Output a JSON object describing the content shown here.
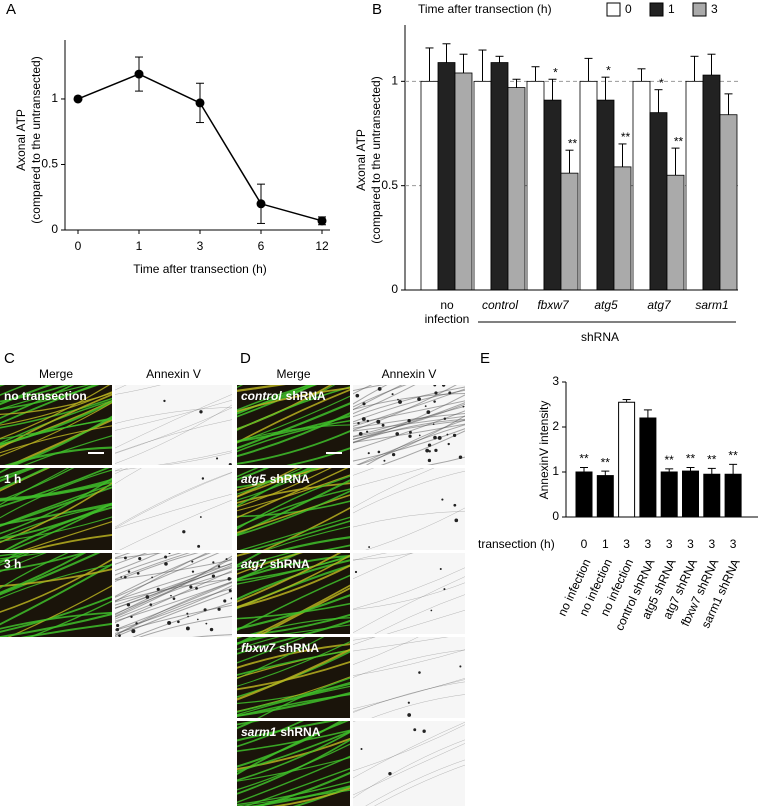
{
  "chart_data": [
    {
      "type": "line",
      "panel_label": "A",
      "categories": [
        "0",
        "1",
        "3",
        "6",
        "12"
      ],
      "values": [
        1,
        1.19,
        0.97,
        0.2,
        0.07
      ],
      "errors": [
        0,
        0.13,
        0.15,
        0.15,
        0.03
      ],
      "color": "#000000",
      "ylim": [
        0,
        1.45
      ],
      "yticks": [
        0,
        0.5,
        1
      ],
      "ylabel": [
        "Axonal ATP",
        "(compared to the untransected)"
      ],
      "xlabel": "Time after transection (h)"
    },
    {
      "type": "grouped-bar",
      "panel_label": "B",
      "categories": [
        "no infection",
        "control",
        "fbxw7",
        "atg5",
        "atg7",
        "sarm1"
      ],
      "legend_title": "Time after transection (h)",
      "series": [
        {
          "name": "0",
          "color": "#ffffff",
          "values": [
            1,
            1,
            1,
            1,
            1,
            1
          ],
          "errors": [
            0.16,
            0.15,
            0.07,
            0.11,
            0.06,
            0.12
          ],
          "significance": [
            null,
            null,
            null,
            null,
            null,
            null
          ]
        },
        {
          "name": "1",
          "color": "#222222",
          "values": [
            1.09,
            1.09,
            0.91,
            0.91,
            0.85,
            1.03
          ],
          "errors": [
            0.09,
            0.03,
            0.1,
            0.11,
            0.11,
            0.1
          ],
          "significance": [
            null,
            null,
            "*",
            "*",
            "*",
            null
          ]
        },
        {
          "name": "3",
          "color": "#aaaaaa",
          "values": [
            1.04,
            0.97,
            0.56,
            0.59,
            0.55,
            0.84
          ],
          "errors": [
            0.09,
            0.04,
            0.11,
            0.11,
            0.13,
            0.1
          ],
          "significance": [
            null,
            null,
            "**",
            "**",
            "**",
            null
          ]
        }
      ],
      "ylim": [
        0,
        1.27
      ],
      "yticks": [
        0,
        0.5,
        1
      ],
      "grid": true,
      "ylabel": [
        "Axonal ATP",
        "(compared to the untransected)"
      ],
      "group_label": "shRNA"
    },
    {
      "type": "bar",
      "panel_label": "E",
      "categories": [
        "no infection",
        "no infection",
        "no infection",
        "control shRNA",
        "atg5 shRNA",
        "atg7 shRNA",
        "fbxw7 shRNA",
        "sarm1 shRNA"
      ],
      "transection": [
        "0",
        "1",
        "3",
        "3",
        "3",
        "3",
        "3",
        "3"
      ],
      "transection_label": "transection (h)",
      "values": [
        1.0,
        0.92,
        2.55,
        2.2,
        1.0,
        1.02,
        0.95,
        0.95
      ],
      "errors": [
        0.1,
        0.1,
        0.06,
        0.18,
        0.07,
        0.08,
        0.13,
        0.22
      ],
      "colors": [
        "#000000",
        "#000000",
        "#ffffff",
        "#000000",
        "#000000",
        "#000000",
        "#000000",
        "#000000"
      ],
      "significance": [
        "**",
        "**",
        null,
        null,
        "**",
        "**",
        "**",
        "**"
      ],
      "ylim": [
        0,
        3
      ],
      "yticks": [
        0,
        1,
        2,
        3
      ],
      "ylabel": "AnnexinV intensity"
    }
  ],
  "image_panels": [
    {
      "label": "C",
      "columns": [
        "Merge",
        "Annexin V"
      ],
      "rows": [
        {
          "text": "no transection"
        },
        {
          "text": "1 h"
        },
        {
          "text": "3 h"
        }
      ]
    },
    {
      "label": "D",
      "columns": [
        "Merge",
        "Annexin V"
      ],
      "rows": [
        {
          "gene": "control",
          "text": "shRNA"
        },
        {
          "gene": "atg5",
          "text": "shRNA"
        },
        {
          "gene": "atg7",
          "text": "shRNA"
        },
        {
          "gene": "fbxw7",
          "text": "shRNA"
        },
        {
          "gene": "sarm1",
          "text": "shRNA"
        }
      ]
    }
  ]
}
